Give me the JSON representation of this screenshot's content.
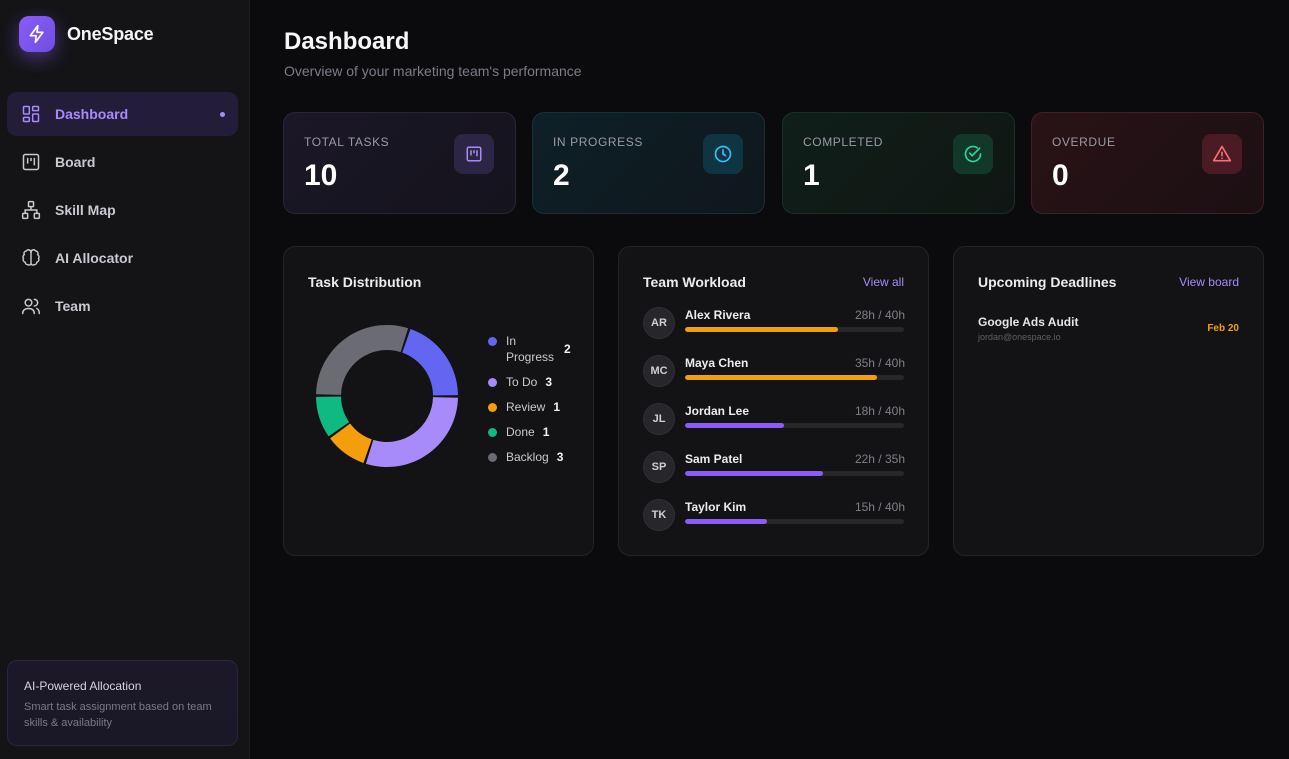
{
  "brand": {
    "name": "OneSpace",
    "icon": "lightning-icon"
  },
  "sidebar": {
    "items": [
      {
        "label": "Dashboard",
        "icon": "dashboard-grid-icon",
        "active": true
      },
      {
        "label": "Board",
        "icon": "kanban-board-icon",
        "active": false
      },
      {
        "label": "Skill Map",
        "icon": "hierarchy-network-icon",
        "active": false
      },
      {
        "label": "AI Allocator",
        "icon": "brain-icon",
        "active": false
      },
      {
        "label": "Team",
        "icon": "users-icon",
        "active": false
      }
    ],
    "promo": {
      "title": "AI-Powered Allocation",
      "text": "Smart task assignment based on team skills & availability"
    }
  },
  "header": {
    "title": "Dashboard",
    "subtitle": "Overview of your marketing team's performance"
  },
  "stats": [
    {
      "label": "TOTAL TASKS",
      "value": "10",
      "icon": "kanban-icon",
      "color": "#a78bfa"
    },
    {
      "label": "IN PROGRESS",
      "value": "2",
      "icon": "clock-icon",
      "color": "#38bdf8"
    },
    {
      "label": "COMPLETED",
      "value": "1",
      "icon": "check-circle-icon",
      "color": "#34d399"
    },
    {
      "label": "OVERDUE",
      "value": "0",
      "icon": "alert-triangle-icon",
      "color": "#f87171"
    }
  ],
  "distribution": {
    "title": "Task Distribution",
    "legend": [
      {
        "label": "In Progress",
        "value": "2",
        "color": "#6366f1"
      },
      {
        "label": "To Do",
        "value": "3",
        "color": "#a78bfa"
      },
      {
        "label": "Review",
        "value": "1",
        "color": "#f59e0b"
      },
      {
        "label": "Done",
        "value": "1",
        "color": "#10b981"
      },
      {
        "label": "Backlog",
        "value": "3",
        "color": "#6b6b73"
      }
    ]
  },
  "chart_data": {
    "type": "pie",
    "categories": [
      "In Progress",
      "To Do",
      "Review",
      "Done",
      "Backlog"
    ],
    "values": [
      2,
      3,
      1,
      1,
      3
    ],
    "colors": [
      "#6366f1",
      "#a78bfa",
      "#f59e0b",
      "#10b981",
      "#6b6b73"
    ],
    "donut": true,
    "title": "Task Distribution"
  },
  "workload": {
    "title": "Team Workload",
    "link": "View all",
    "members": [
      {
        "initials": "AR",
        "name": "Alex Rivera",
        "hours": "28h / 40h",
        "fraction": 0.7,
        "color": "#f59e0b"
      },
      {
        "initials": "MC",
        "name": "Maya Chen",
        "hours": "35h / 40h",
        "fraction": 0.875,
        "color": "#f59e0b"
      },
      {
        "initials": "JL",
        "name": "Jordan Lee",
        "hours": "18h / 40h",
        "fraction": 0.45,
        "color": "#8b5cf6"
      },
      {
        "initials": "SP",
        "name": "Sam Patel",
        "hours": "22h / 35h",
        "fraction": 0.63,
        "color": "#8b5cf6"
      },
      {
        "initials": "TK",
        "name": "Taylor Kim",
        "hours": "15h / 40h",
        "fraction": 0.375,
        "color": "#8b5cf6"
      }
    ]
  },
  "deadlines": {
    "title": "Upcoming Deadlines",
    "link": "View board",
    "items": [
      {
        "title": "Google Ads Audit",
        "assignee": "jordan@onespace.io",
        "date": "Feb 20"
      }
    ]
  }
}
